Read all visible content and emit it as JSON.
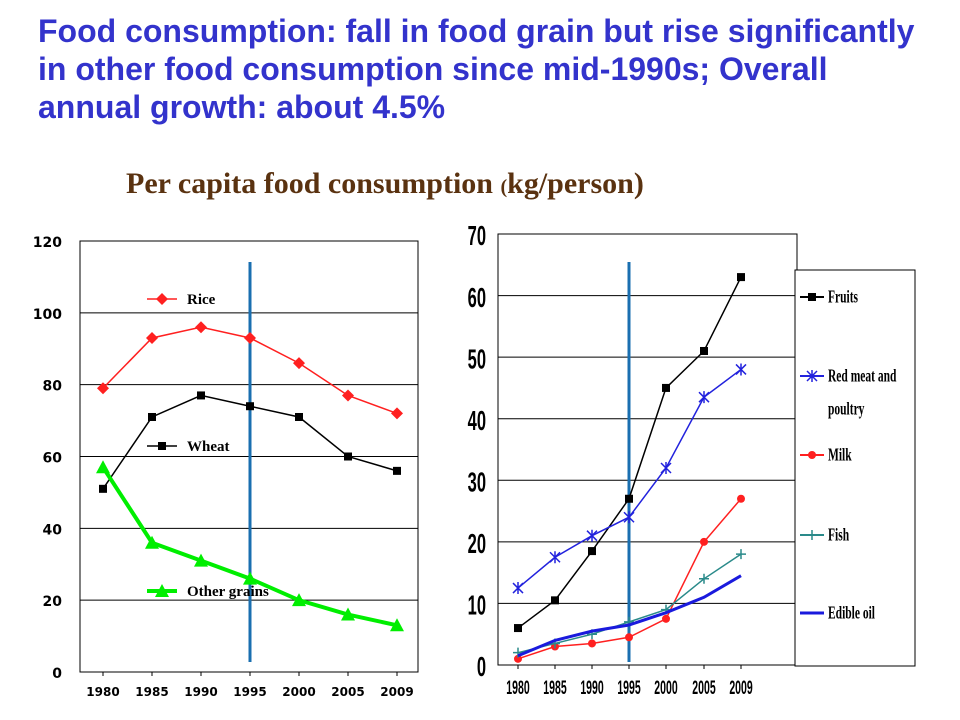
{
  "slide_title": "Food consumption: fall in food grain but rise significantly in other food consumption since mid-1990s; Overall annual growth: about 4.5%",
  "heading": {
    "text": "Per capita food consumption",
    "unit_open": "(",
    "unit_rest": "kg/person)"
  },
  "colors": {
    "title": "#3333cc",
    "heading": "#5a3210",
    "rice": "#ff2020",
    "wheat": "#000000",
    "other_grains": "#00ee00",
    "fruits": "#000000",
    "red_meat": "#2222dd",
    "milk": "#ff2020",
    "fish": "#2a8a8a",
    "edible_oil": "#1a1add",
    "marker_1995": "#1a6fb0",
    "grid": "#000000"
  },
  "chart_data": [
    {
      "type": "line",
      "categories": [
        "1980",
        "1985",
        "1990",
        "1995",
        "2000",
        "2005",
        "2009"
      ],
      "ylim": [
        0,
        120
      ],
      "yticks": [
        "0",
        "20",
        "40",
        "60",
        "80",
        "100",
        "120"
      ],
      "grid": "horizontal",
      "vertical_marker": "1995",
      "series": [
        {
          "name": "Rice",
          "values": [
            79,
            93,
            96,
            93,
            86,
            77,
            72
          ],
          "color_key": "rice",
          "marker": "diamond"
        },
        {
          "name": "Wheat",
          "values": [
            51,
            71,
            77,
            74,
            71,
            60,
            56
          ],
          "color_key": "wheat",
          "marker": "square"
        },
        {
          "name": "Other grains",
          "values": [
            57,
            36,
            31,
            26,
            20,
            16,
            13
          ],
          "color_key": "other_grains",
          "marker": "triangle"
        }
      ]
    },
    {
      "type": "line",
      "categories": [
        "1980",
        "1985",
        "1990",
        "1995",
        "2000",
        "2005",
        "2009"
      ],
      "ylim": [
        0,
        70
      ],
      "yticks": [
        "0",
        "10",
        "20",
        "30",
        "40",
        "50",
        "60",
        "70"
      ],
      "grid": "horizontal",
      "legend": "right",
      "vertical_marker": "1995",
      "series": [
        {
          "name": "Fruits",
          "values": [
            6,
            10.5,
            18.5,
            27,
            45,
            51,
            63
          ],
          "color_key": "fruits",
          "marker": "square"
        },
        {
          "name": "Red meat and poultry",
          "values": [
            12.5,
            17.5,
            21,
            24,
            32,
            43.5,
            48
          ],
          "color_key": "red_meat",
          "marker": "star"
        },
        {
          "name": "Milk",
          "values": [
            1,
            3,
            3.5,
            4.5,
            7.5,
            20,
            27
          ],
          "color_key": "milk",
          "marker": "circle"
        },
        {
          "name": "Fish",
          "values": [
            2,
            3.5,
            5,
            7,
            9,
            14,
            18
          ],
          "color_key": "fish",
          "marker": "plus"
        },
        {
          "name": "Edible oil",
          "values": [
            1.5,
            4,
            5.5,
            6.5,
            8.5,
            11,
            14.5
          ],
          "color_key": "edible_oil",
          "marker": "none"
        }
      ]
    }
  ]
}
